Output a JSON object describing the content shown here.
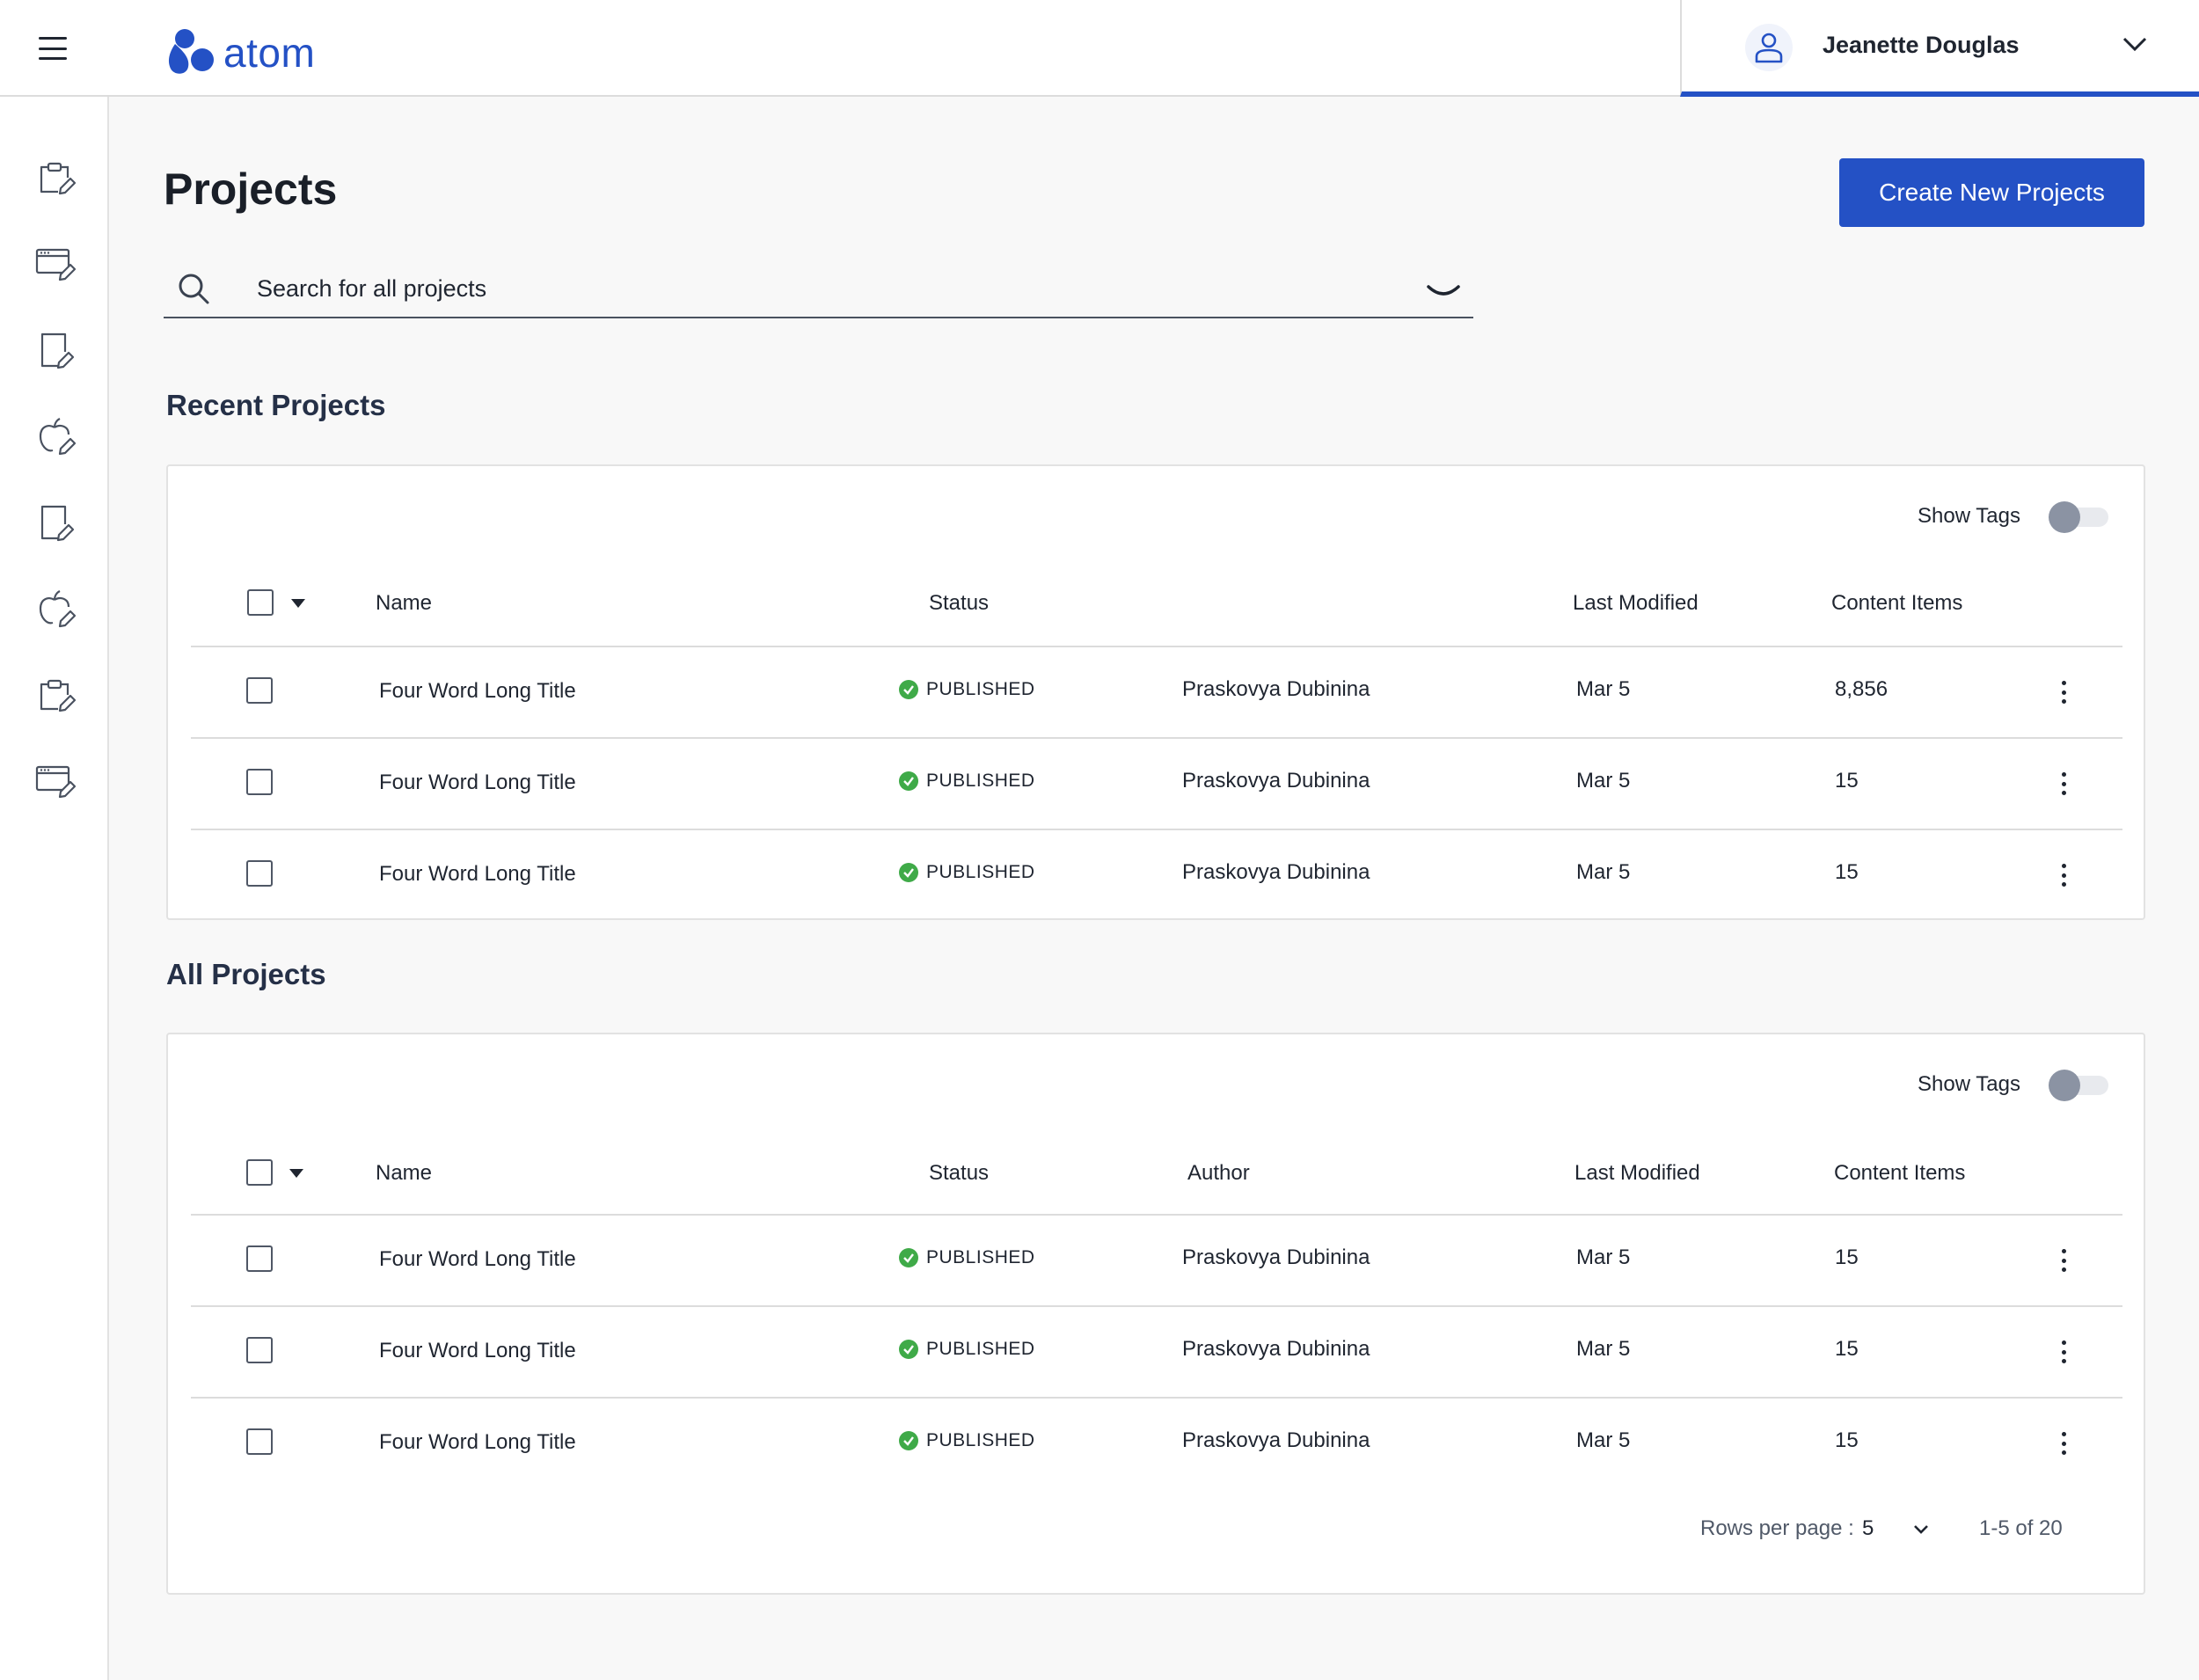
{
  "app": {
    "logo_text": "atom",
    "brand_color": "#2451c5",
    "user_name": "Jeanette Douglas"
  },
  "sidebar": {
    "items": [
      {
        "icon": "clipboard-edit-icon"
      },
      {
        "icon": "browser-edit-icon"
      },
      {
        "icon": "document-edit-icon"
      },
      {
        "icon": "apple-edit-icon"
      },
      {
        "icon": "document-edit-icon"
      },
      {
        "icon": "apple-edit-icon"
      },
      {
        "icon": "clipboard-edit-icon"
      },
      {
        "icon": "browser-edit-icon"
      }
    ]
  },
  "page": {
    "title": "Projects",
    "create_button": "Create New Projects",
    "search_placeholder": "Search for all projects"
  },
  "recent": {
    "title": "Recent Projects",
    "show_tags_label": "Show Tags",
    "columns": {
      "name": "Name",
      "status": "Status",
      "last_modified": "Last Modified",
      "content_items": "Content Items"
    },
    "rows": [
      {
        "name": "Four Word Long Title",
        "status": "PUBLISHED",
        "author": "Praskovya Dubinina",
        "modified": "Mar 5",
        "items": "8,856"
      },
      {
        "name": "Four Word Long Title",
        "status": "PUBLISHED",
        "author": "Praskovya Dubinina",
        "modified": "Mar 5",
        "items": "15"
      },
      {
        "name": "Four Word Long Title",
        "status": "PUBLISHED",
        "author": "Praskovya Dubinina",
        "modified": "Mar 5",
        "items": "15"
      }
    ]
  },
  "all": {
    "title": "All Projects",
    "show_tags_label": "Show Tags",
    "columns": {
      "name": "Name",
      "status": "Status",
      "author": "Author",
      "last_modified": "Last Modified",
      "content_items": "Content Items"
    },
    "rows": [
      {
        "name": "Four Word Long Title",
        "status": "PUBLISHED",
        "author": "Praskovya Dubinina",
        "modified": "Mar 5",
        "items": "15"
      },
      {
        "name": "Four Word Long Title",
        "status": "PUBLISHED",
        "author": "Praskovya Dubinina",
        "modified": "Mar 5",
        "items": "15"
      },
      {
        "name": "Four Word Long Title",
        "status": "PUBLISHED",
        "author": "Praskovya Dubinina",
        "modified": "Mar 5",
        "items": "15"
      }
    ],
    "pagination": {
      "rows_per_page_label": "Rows per page :",
      "rows_per_page_value": "5",
      "range": "1-5 of 20"
    }
  }
}
